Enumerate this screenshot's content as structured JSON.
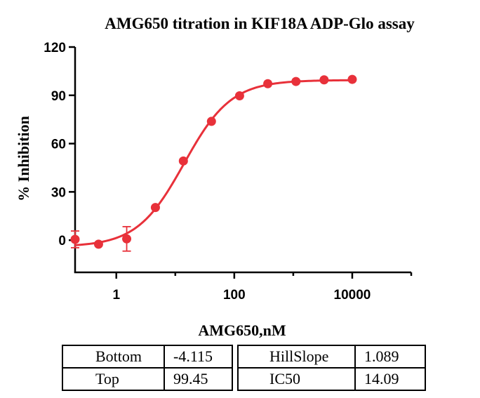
{
  "chart_data": {
    "type": "scatter",
    "title": "AMG650 titration  in KIF18A  ADP-Glo assay",
    "xlabel": "AMG650,nM",
    "ylabel": "% Inhibition",
    "x_scale": "log10",
    "xlim": [
      0.2,
      100000
    ],
    "ylim": [
      -20,
      120
    ],
    "x_ticks": [
      1,
      100,
      10000
    ],
    "x_tick_labels": [
      "1",
      "100",
      "10000"
    ],
    "y_ticks": [
      0,
      30,
      60,
      90,
      120
    ],
    "y_tick_labels": [
      "0",
      "30",
      "60",
      "90",
      "120"
    ],
    "grid": false,
    "color": "#e8313a",
    "series": [
      {
        "x": [
          0.2,
          0.5,
          1.5,
          4.6,
          13.7,
          41,
          123,
          370,
          1111,
          3333,
          10000
        ],
        "y": [
          0.5,
          -2.5,
          0.8,
          20.3,
          49.2,
          73.8,
          89.7,
          97.2,
          98.6,
          99.6,
          99.9
        ],
        "error": [
          5.2,
          0,
          7.6,
          0,
          0,
          0,
          0,
          0,
          0,
          0,
          0
        ]
      }
    ],
    "fit": {
      "model": "four-parameter logistic",
      "bottom": -4.115,
      "top": 99.45,
      "hill_slope": 1.089,
      "ic50": 14.09
    }
  },
  "fit_table": {
    "rows": [
      [
        "Bottom",
        "-4.115",
        "HillSlope",
        "1.089"
      ],
      [
        "Top",
        "99.45",
        "IC50",
        "14.09"
      ]
    ]
  }
}
